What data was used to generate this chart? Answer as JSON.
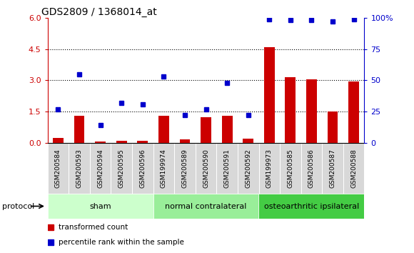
{
  "title": "GDS2809 / 1368014_at",
  "categories": [
    "GSM200584",
    "GSM200593",
    "GSM200594",
    "GSM200595",
    "GSM200596",
    "GSM199974",
    "GSM200589",
    "GSM200590",
    "GSM200591",
    "GSM200592",
    "GSM199973",
    "GSM200585",
    "GSM200586",
    "GSM200587",
    "GSM200588"
  ],
  "red_bars": [
    0.25,
    1.3,
    0.08,
    0.12,
    0.12,
    1.3,
    0.18,
    1.25,
    1.3,
    0.2,
    4.6,
    3.15,
    3.05,
    1.5,
    2.95
  ],
  "blue_dots_pct": [
    27,
    55,
    14,
    32,
    31,
    53,
    22,
    27,
    48,
    22,
    99,
    98,
    98,
    97,
    99
  ],
  "groups": [
    {
      "label": "sham",
      "start": 0,
      "end": 4,
      "color": "#ccffcc"
    },
    {
      "label": "normal contralateral",
      "start": 5,
      "end": 9,
      "color": "#99ee99"
    },
    {
      "label": "osteoarthritic ipsilateral",
      "start": 10,
      "end": 14,
      "color": "#44cc44"
    }
  ],
  "left_ylim": [
    0,
    6
  ],
  "left_yticks": [
    0,
    1.5,
    3.0,
    4.5,
    6.0
  ],
  "right_ylim": [
    0,
    100
  ],
  "right_yticks": [
    0,
    25,
    50,
    75,
    100
  ],
  "right_yticklabels": [
    "0",
    "25",
    "50",
    "75",
    "100%"
  ],
  "bar_color": "#cc0000",
  "dot_color": "#0000cc",
  "grid_color": "black",
  "protocol_label": "protocol",
  "legend_red": "transformed count",
  "legend_blue": "percentile rank within the sample",
  "cell_bg": "#d8d8d8",
  "cell_border": "#ffffff"
}
